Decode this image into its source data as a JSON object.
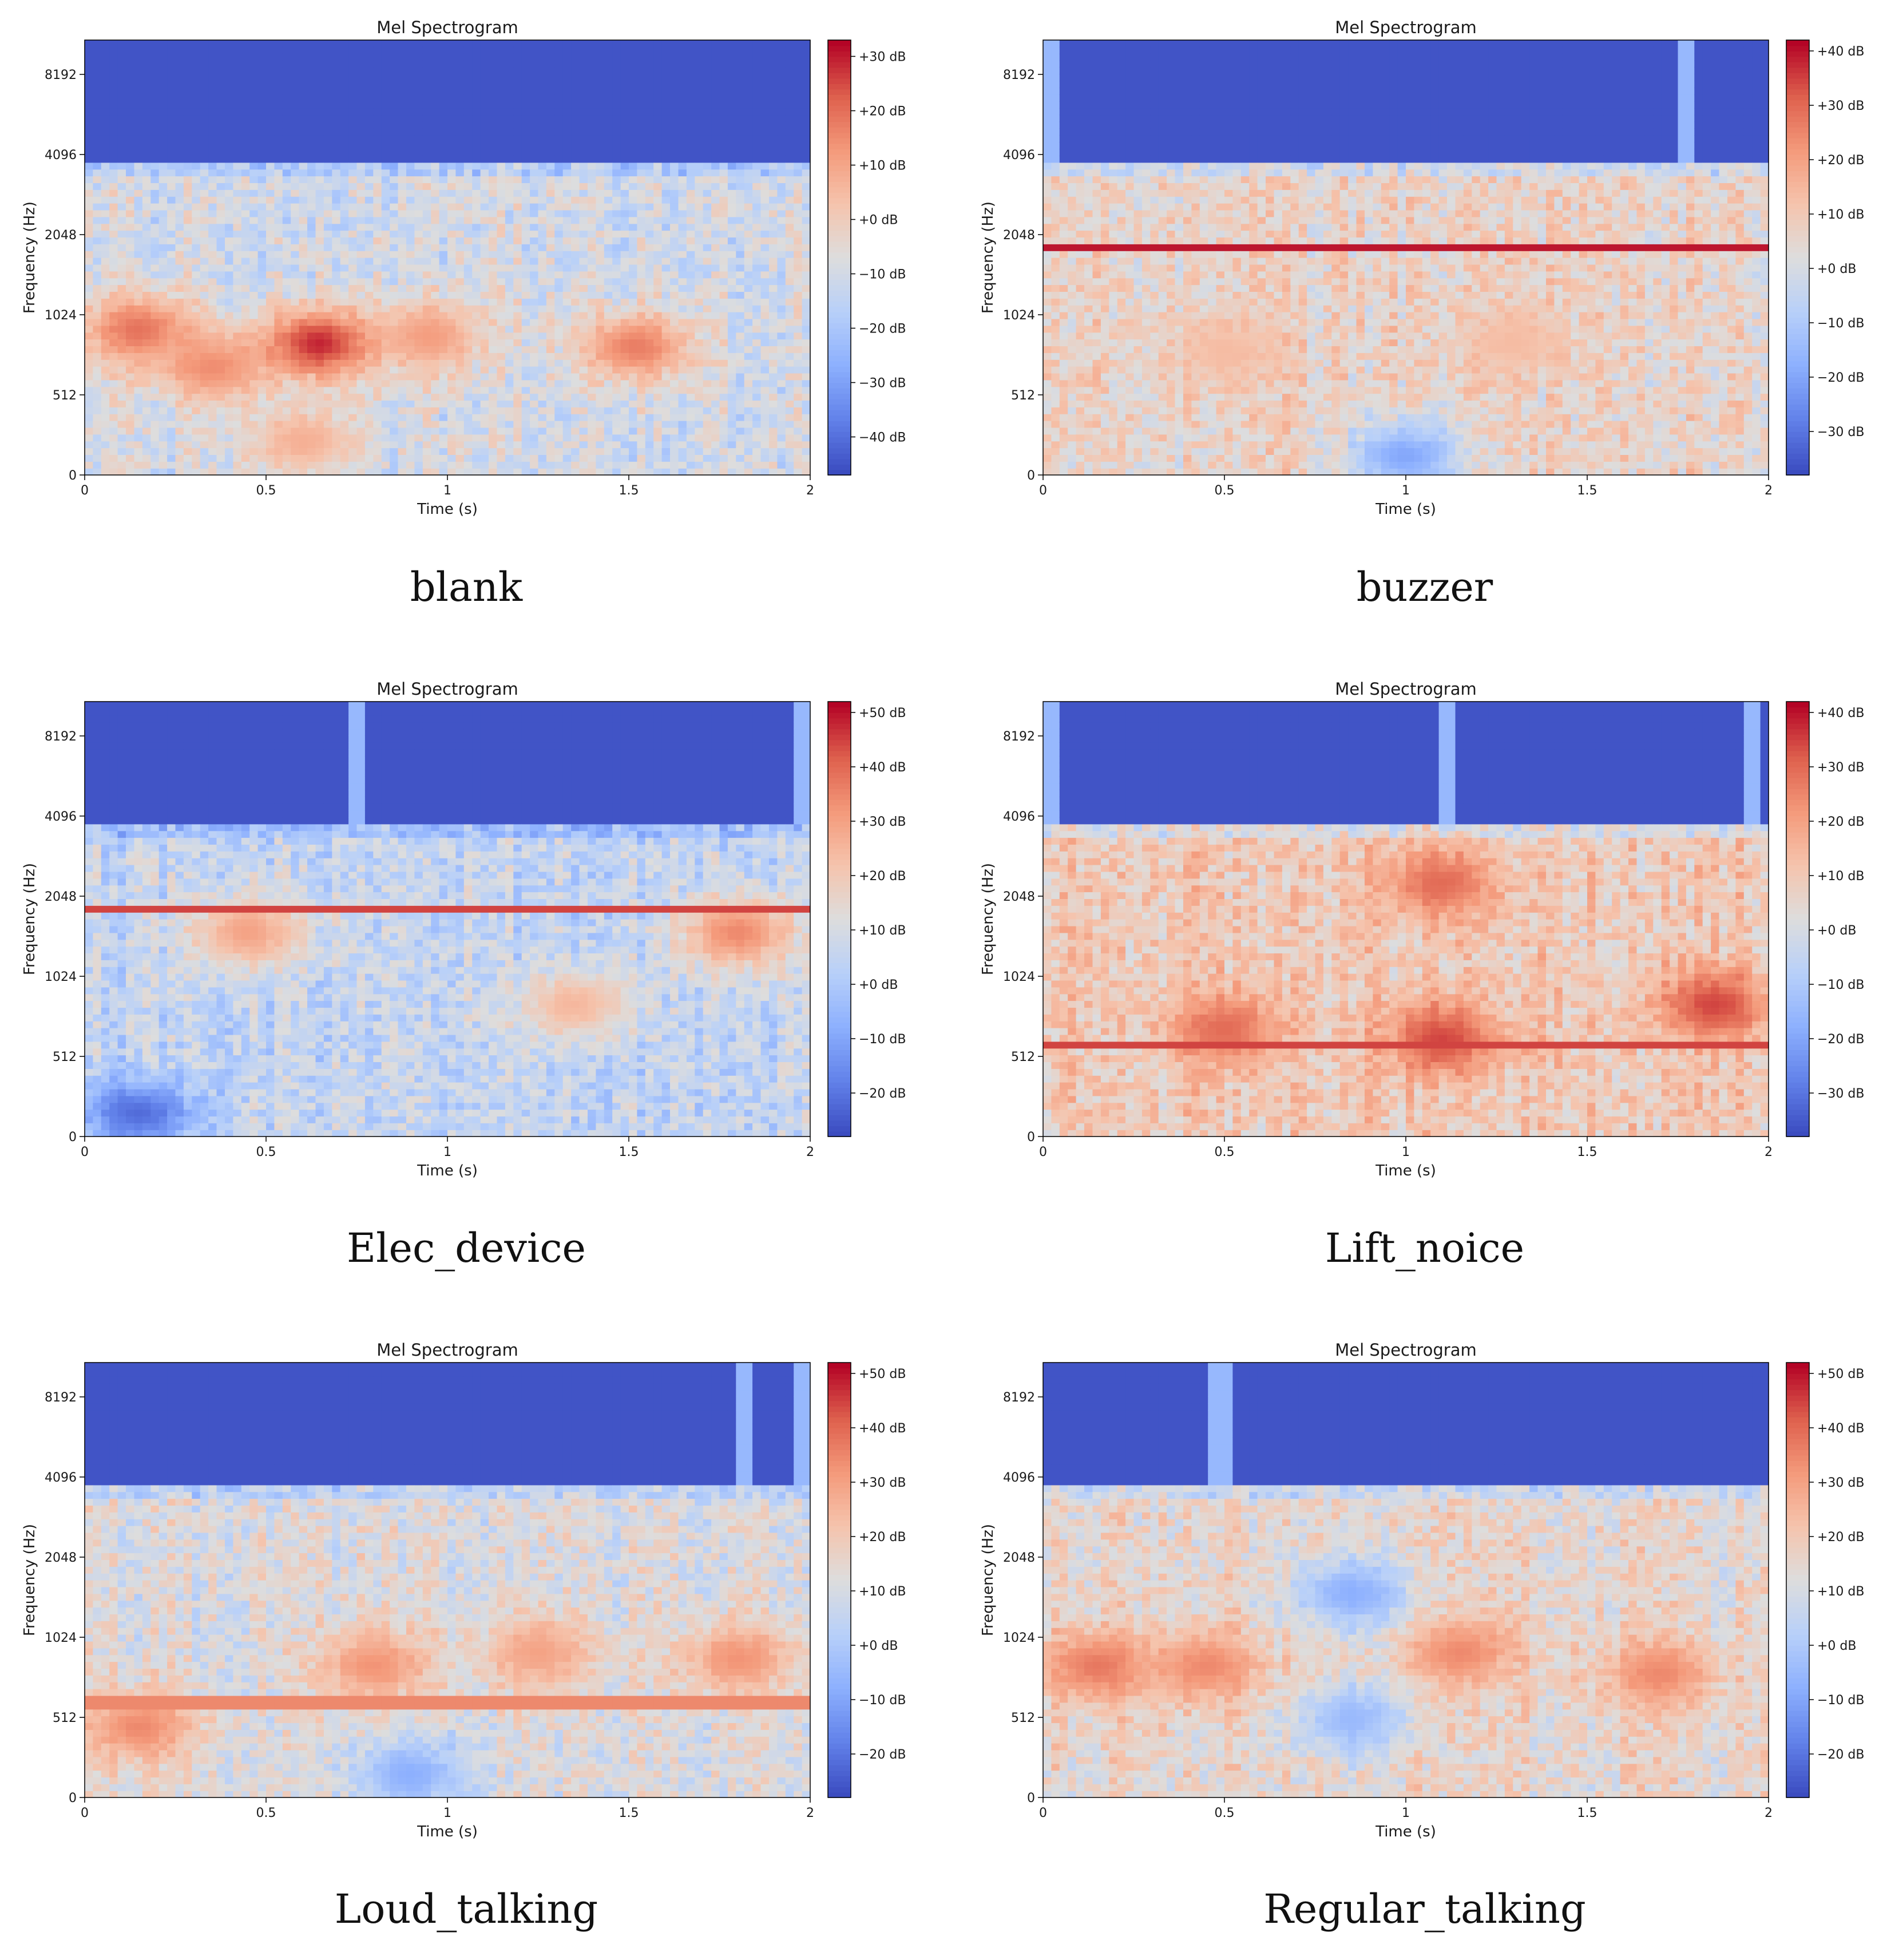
{
  "figure": {
    "description_title": "Mel Spectrogram panels"
  },
  "chart_data": [
    {
      "type": "heatmap",
      "name": "blank",
      "title": "Mel Spectrogram",
      "caption": "blank",
      "xlabel": "Time (s)",
      "ylabel": "Frequency (Hz)",
      "xticks": [
        "0",
        "0.5",
        "1",
        "1.5",
        "2"
      ],
      "xlim": [
        0,
        2
      ],
      "yticks": [
        "0",
        "512",
        "1024",
        "2048",
        "4096",
        "8192"
      ],
      "colorbar_ticks": [
        "+30 dB",
        "+20 dB",
        "+10 dB",
        "+0 dB",
        "−10 dB",
        "−20 dB",
        "−30 dB",
        "−40 dB"
      ],
      "db_range": [
        -47,
        33
      ],
      "cutoff_hz": 3800,
      "baseline_db": -10,
      "hline_db": 5,
      "hline_hz": null,
      "blobs": [
        {
          "t": 0.15,
          "f": 900,
          "db": 20
        },
        {
          "t": 0.35,
          "f": 650,
          "db": 15
        },
        {
          "t": 0.65,
          "f": 800,
          "db": 30
        },
        {
          "t": 0.95,
          "f": 850,
          "db": 12
        },
        {
          "t": 1.52,
          "f": 780,
          "db": 18
        },
        {
          "t": 0.6,
          "f": 220,
          "db": 8
        }
      ],
      "spikes": []
    },
    {
      "type": "heatmap",
      "name": "buzzer",
      "title": "Mel Spectrogram",
      "caption": "buzzer",
      "xlabel": "Time (s)",
      "ylabel": "Frequency (Hz)",
      "xticks": [
        "0",
        "0.5",
        "1",
        "1.5",
        "2"
      ],
      "xlim": [
        0,
        2
      ],
      "yticks": [
        "0",
        "512",
        "1024",
        "2048",
        "4096",
        "8192"
      ],
      "colorbar_ticks": [
        "+40 dB",
        "+30 dB",
        "+20 dB",
        "+10 dB",
        "+0 dB",
        "−10 dB",
        "−20 dB",
        "−30 dB"
      ],
      "db_range": [
        -38,
        42
      ],
      "cutoff_hz": 3800,
      "baseline_db": 6,
      "hline_db": 40,
      "hline_hz": 1850,
      "blobs": [
        {
          "t": 0.5,
          "f": 750,
          "db": 14
        },
        {
          "t": 1.3,
          "f": 800,
          "db": 14
        },
        {
          "t": 1.0,
          "f": 120,
          "db": -20
        }
      ],
      "spikes": [
        0.02,
        1.78
      ]
    },
    {
      "type": "heatmap",
      "name": "Elec_device",
      "title": "Mel Spectrogram",
      "caption": "Elec_device",
      "xlabel": "Time (s)",
      "ylabel": "Frequency (Hz)",
      "xticks": [
        "0",
        "0.5",
        "1",
        "1.5",
        "2"
      ],
      "xlim": [
        0,
        2
      ],
      "yticks": [
        "0",
        "512",
        "1024",
        "2048",
        "4096",
        "8192"
      ],
      "colorbar_ticks": [
        "+50 dB",
        "+40 dB",
        "+30 dB",
        "+20 dB",
        "+10 dB",
        "+0 dB",
        "−10 dB",
        "−20 dB"
      ],
      "db_range": [
        -28,
        52
      ],
      "cutoff_hz": 3800,
      "baseline_db": 5,
      "hline_db": 45,
      "hline_hz": 1850,
      "blobs": [
        {
          "t": 0.45,
          "f": 1500,
          "db": 30
        },
        {
          "t": 1.8,
          "f": 1500,
          "db": 35
        },
        {
          "t": 1.35,
          "f": 800,
          "db": 25
        },
        {
          "t": 0.15,
          "f": 150,
          "db": -22
        }
      ],
      "spikes": [
        0.76,
        1.98
      ]
    },
    {
      "type": "heatmap",
      "name": "Lift_noice",
      "title": "Mel Spectrogram",
      "caption": "Lift_noice",
      "xlabel": "Time (s)",
      "ylabel": "Frequency (Hz)",
      "xticks": [
        "0",
        "0.5",
        "1",
        "1.5",
        "2"
      ],
      "xlim": [
        0,
        2
      ],
      "yticks": [
        "0",
        "512",
        "1024",
        "2048",
        "4096",
        "8192"
      ],
      "colorbar_ticks": [
        "+40 dB",
        "+30 dB",
        "+20 dB",
        "+10 dB",
        "+0 dB",
        "−10 dB",
        "−20 dB",
        "−30 dB"
      ],
      "db_range": [
        -38,
        42
      ],
      "cutoff_hz": 3800,
      "baseline_db": 10,
      "hline_db": 35,
      "hline_hz": 560,
      "blobs": [
        {
          "t": 0.5,
          "f": 650,
          "db": 30
        },
        {
          "t": 1.1,
          "f": 600,
          "db": 35
        },
        {
          "t": 1.1,
          "f": 2300,
          "db": 30
        },
        {
          "t": 1.85,
          "f": 800,
          "db": 35
        }
      ],
      "spikes": [
        0.02,
        1.12,
        1.95
      ]
    },
    {
      "type": "heatmap",
      "name": "Loud_talking",
      "title": "Mel Spectrogram",
      "caption": "Loud_talking",
      "xlabel": "Time (s)",
      "ylabel": "Frequency (Hz)",
      "xticks": [
        "0",
        "0.5",
        "1",
        "1.5",
        "2"
      ],
      "xlim": [
        0,
        2
      ],
      "yticks": [
        "0",
        "512",
        "1024",
        "2048",
        "4096",
        "8192"
      ],
      "colorbar_ticks": [
        "+50 dB",
        "+40 dB",
        "+30 dB",
        "+20 dB",
        "+10 dB",
        "+0 dB",
        "−10 dB",
        "−20 dB"
      ],
      "db_range": [
        -28,
        52
      ],
      "cutoff_hz": 3800,
      "baseline_db": 12,
      "hline_db": 35,
      "hline_hz": 580,
      "blobs": [
        {
          "t": 0.15,
          "f": 450,
          "db": 35
        },
        {
          "t": 0.8,
          "f": 800,
          "db": 33
        },
        {
          "t": 1.25,
          "f": 900,
          "db": 30
        },
        {
          "t": 1.8,
          "f": 850,
          "db": 33
        },
        {
          "t": 0.9,
          "f": 150,
          "db": -8
        }
      ],
      "spikes": [
        1.82,
        1.97
      ]
    },
    {
      "type": "heatmap",
      "name": "Regular_talking",
      "title": "Mel Spectrogram",
      "caption": "Regular_talking",
      "xlabel": "Time (s)",
      "ylabel": "Frequency (Hz)",
      "xticks": [
        "0",
        "0.5",
        "1",
        "1.5",
        "2"
      ],
      "xlim": [
        0,
        2
      ],
      "yticks": [
        "0",
        "512",
        "1024",
        "2048",
        "4096",
        "8192"
      ],
      "colorbar_ticks": [
        "+50 dB",
        "+40 dB",
        "+30 dB",
        "+20 dB",
        "+10 dB",
        "+0 dB",
        "−10 dB",
        "−20 dB"
      ],
      "db_range": [
        -28,
        52
      ],
      "cutoff_hz": 3800,
      "baseline_db": 15,
      "hline_db": null,
      "hline_hz": null,
      "blobs": [
        {
          "t": 0.15,
          "f": 800,
          "db": 38
        },
        {
          "t": 0.45,
          "f": 800,
          "db": 35
        },
        {
          "t": 1.15,
          "f": 900,
          "db": 35
        },
        {
          "t": 1.7,
          "f": 750,
          "db": 35
        },
        {
          "t": 0.85,
          "f": 1500,
          "db": -8
        },
        {
          "t": 0.85,
          "f": 500,
          "db": -5
        }
      ],
      "spikes": [
        0.47,
        0.51
      ]
    }
  ]
}
